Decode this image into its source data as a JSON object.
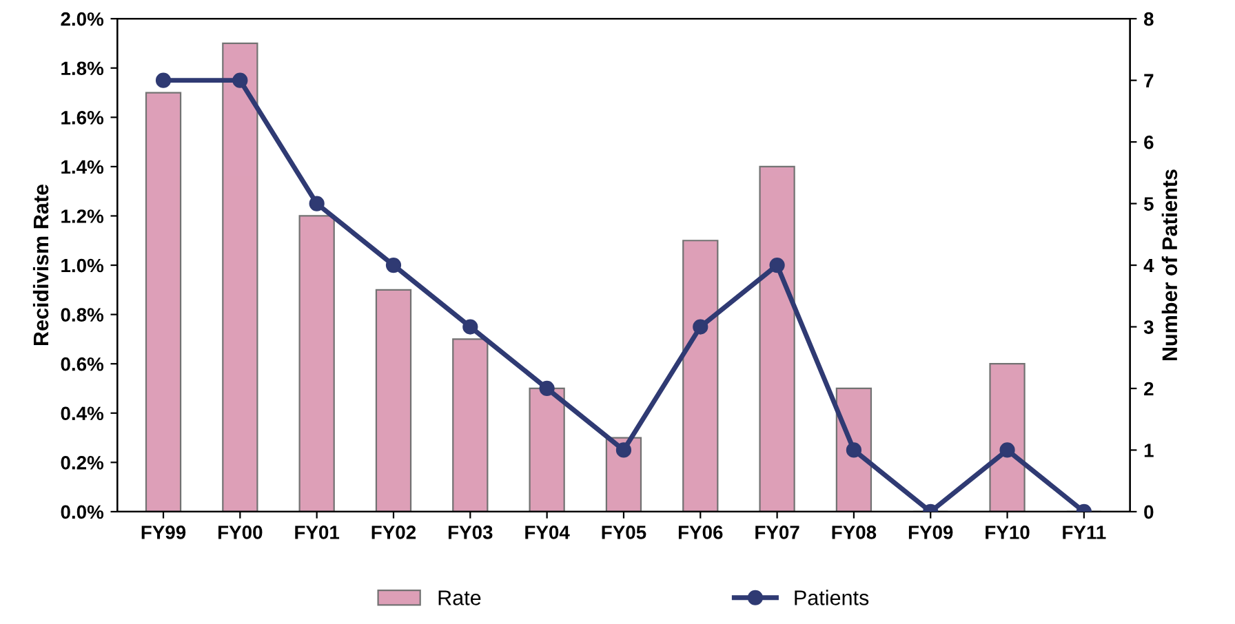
{
  "chart_data": {
    "type": "bar",
    "ylabel": "Recidivism Rate",
    "y2label": "Number of Patients",
    "categories": [
      "FY99",
      "FY00",
      "FY01",
      "FY02",
      "FY03",
      "FY04",
      "FY05",
      "FY06",
      "FY07",
      "FY08",
      "FY09",
      "FY10",
      "FY11"
    ],
    "series": [
      {
        "name": "Rate",
        "color": "#c2517e",
        "values": [
          1.7,
          1.9,
          1.2,
          0.9,
          0.7,
          0.5,
          0.3,
          1.1,
          1.4,
          0.5,
          0,
          0.6,
          0
        ]
      },
      {
        "name": "Patients",
        "type": "line",
        "axis": "y2",
        "color": "#2f3a73",
        "marker": "circle",
        "values": [
          7,
          7,
          5,
          4,
          3,
          2,
          1,
          3,
          4,
          1,
          0,
          1,
          0
        ]
      }
    ],
    "ylim": [
      0,
      2.0
    ],
    "yticks": [
      {
        "value": 0,
        "label": "0.0%"
      },
      {
        "value": 0.2,
        "label": "0.2%"
      },
      {
        "value": 0.4,
        "label": "0.4%"
      },
      {
        "value": 0.6,
        "label": "0.6%"
      },
      {
        "value": 0.8,
        "label": "0.8%"
      },
      {
        "value": 1.0,
        "label": "1.0%"
      },
      {
        "value": 1.2,
        "label": "1.2%"
      },
      {
        "value": 1.4,
        "label": "1.4%"
      },
      {
        "value": 1.6,
        "label": "1.6%"
      },
      {
        "value": 1.8,
        "label": "1.8%"
      },
      {
        "value": 2.0,
        "label": "2.0%"
      }
    ],
    "y2lim": [
      0,
      8
    ],
    "y2ticks": [
      0,
      1,
      2,
      3,
      4,
      5,
      6,
      7,
      8
    ],
    "legend": "bottom",
    "grid": false
  }
}
